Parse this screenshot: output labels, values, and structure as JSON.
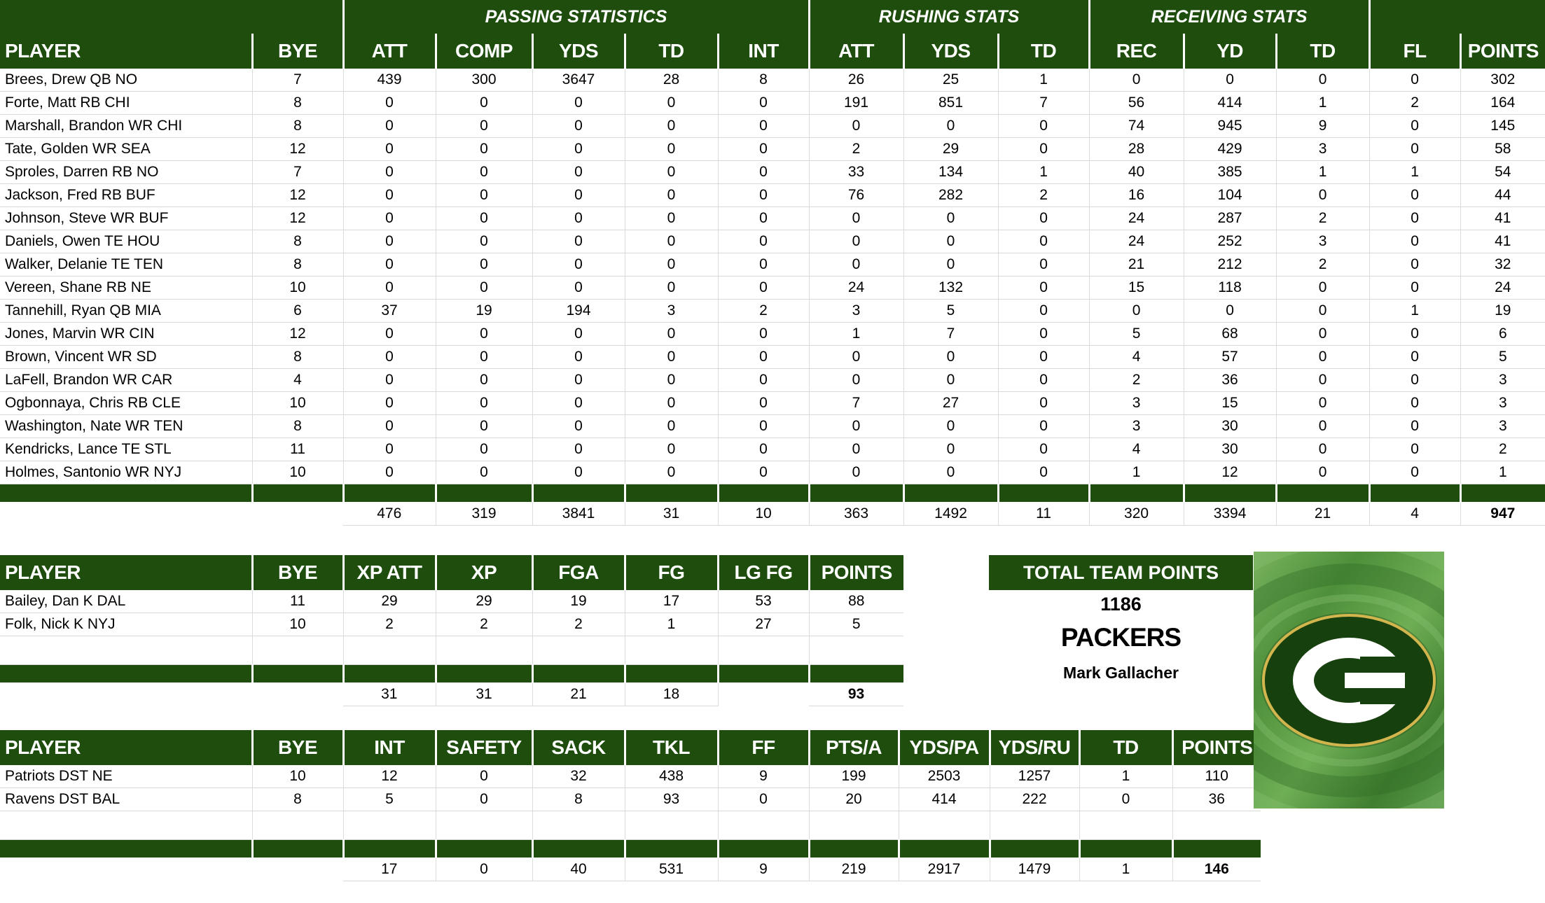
{
  "colors": {
    "header_green": "#1e4d0e",
    "row_border": "#d9d9d9",
    "logo_dark_green": "#17400f",
    "logo_gold": "#d3b54e",
    "logo_background_green": "#5a9e48"
  },
  "main_table": {
    "group_headers": {
      "blank_left": "",
      "passing": "PASSING STATISTICS",
      "rushing": "RUSHING STATS",
      "receiving": "RECEIVING STATS",
      "blank_right": ""
    },
    "columns": [
      "PLAYER",
      "BYE",
      "ATT",
      "COMP",
      "YDS",
      "TD",
      "INT",
      "ATT",
      "YDS",
      "TD",
      "REC",
      "YD",
      "TD",
      "FL",
      "POINTS"
    ],
    "rows": [
      [
        "Brees, Drew QB NO",
        "7",
        "439",
        "300",
        "3647",
        "28",
        "8",
        "26",
        "25",
        "1",
        "0",
        "0",
        "0",
        "0",
        "302"
      ],
      [
        "Forte, Matt RB CHI",
        "8",
        "0",
        "0",
        "0",
        "0",
        "0",
        "191",
        "851",
        "7",
        "56",
        "414",
        "1",
        "2",
        "164"
      ],
      [
        "Marshall, Brandon WR CHI",
        "8",
        "0",
        "0",
        "0",
        "0",
        "0",
        "0",
        "0",
        "0",
        "74",
        "945",
        "9",
        "0",
        "145"
      ],
      [
        "Tate, Golden WR SEA",
        "12",
        "0",
        "0",
        "0",
        "0",
        "0",
        "2",
        "29",
        "0",
        "28",
        "429",
        "3",
        "0",
        "58"
      ],
      [
        "Sproles, Darren RB NO",
        "7",
        "0",
        "0",
        "0",
        "0",
        "0",
        "33",
        "134",
        "1",
        "40",
        "385",
        "1",
        "1",
        "54"
      ],
      [
        "Jackson, Fred RB BUF",
        "12",
        "0",
        "0",
        "0",
        "0",
        "0",
        "76",
        "282",
        "2",
        "16",
        "104",
        "0",
        "0",
        "44"
      ],
      [
        "Johnson, Steve WR BUF",
        "12",
        "0",
        "0",
        "0",
        "0",
        "0",
        "0",
        "0",
        "0",
        "24",
        "287",
        "2",
        "0",
        "41"
      ],
      [
        "Daniels, Owen TE HOU",
        "8",
        "0",
        "0",
        "0",
        "0",
        "0",
        "0",
        "0",
        "0",
        "24",
        "252",
        "3",
        "0",
        "41"
      ],
      [
        "Walker, Delanie TE TEN",
        "8",
        "0",
        "0",
        "0",
        "0",
        "0",
        "0",
        "0",
        "0",
        "21",
        "212",
        "2",
        "0",
        "32"
      ],
      [
        "Vereen, Shane RB NE",
        "10",
        "0",
        "0",
        "0",
        "0",
        "0",
        "24",
        "132",
        "0",
        "15",
        "118",
        "0",
        "0",
        "24"
      ],
      [
        "Tannehill, Ryan QB MIA",
        "6",
        "37",
        "19",
        "194",
        "3",
        "2",
        "3",
        "5",
        "0",
        "0",
        "0",
        "0",
        "1",
        "19"
      ],
      [
        "Jones, Marvin WR CIN",
        "12",
        "0",
        "0",
        "0",
        "0",
        "0",
        "1",
        "7",
        "0",
        "5",
        "68",
        "0",
        "0",
        "6"
      ],
      [
        "Brown, Vincent WR SD",
        "8",
        "0",
        "0",
        "0",
        "0",
        "0",
        "0",
        "0",
        "0",
        "4",
        "57",
        "0",
        "0",
        "5"
      ],
      [
        "LaFell, Brandon WR CAR",
        "4",
        "0",
        "0",
        "0",
        "0",
        "0",
        "0",
        "0",
        "0",
        "2",
        "36",
        "0",
        "0",
        "3"
      ],
      [
        "Ogbonnaya, Chris RB CLE",
        "10",
        "0",
        "0",
        "0",
        "0",
        "0",
        "7",
        "27",
        "0",
        "3",
        "15",
        "0",
        "0",
        "3"
      ],
      [
        "Washington, Nate WR TEN",
        "8",
        "0",
        "0",
        "0",
        "0",
        "0",
        "0",
        "0",
        "0",
        "3",
        "30",
        "0",
        "0",
        "3"
      ],
      [
        "Kendricks, Lance TE STL",
        "11",
        "0",
        "0",
        "0",
        "0",
        "0",
        "0",
        "0",
        "0",
        "4",
        "30",
        "0",
        "0",
        "2"
      ],
      [
        "Holmes, Santonio WR NYJ",
        "10",
        "0",
        "0",
        "0",
        "0",
        "0",
        "0",
        "0",
        "0",
        "1",
        "12",
        "0",
        "0",
        "1"
      ]
    ],
    "totals": [
      "",
      "",
      "476",
      "319",
      "3841",
      "31",
      "10",
      "363",
      "1492",
      "11",
      "320",
      "3394",
      "21",
      "4",
      "947"
    ]
  },
  "kicker_table": {
    "columns": [
      "PLAYER",
      "BYE",
      "XP ATT",
      "XP",
      "FGA",
      "FG",
      "LG FG",
      "POINTS"
    ],
    "rows": [
      [
        "Bailey, Dan K DAL",
        "11",
        "29",
        "29",
        "19",
        "17",
        "53",
        "88"
      ],
      [
        "Folk, Nick K NYJ",
        "10",
        "2",
        "2",
        "2",
        "1",
        "27",
        "5"
      ]
    ],
    "totals": [
      "",
      "",
      "31",
      "31",
      "21",
      "18",
      "",
      "93"
    ]
  },
  "dst_table": {
    "columns": [
      "PLAYER",
      "BYE",
      "INT",
      "SAFETY",
      "SACK",
      "TKL",
      "FF",
      "PTS/A",
      "YDS/PA",
      "YDS/RU",
      "TD",
      "POINTS"
    ],
    "rows": [
      [
        "Patriots DST NE",
        "10",
        "12",
        "0",
        "32",
        "438",
        "9",
        "199",
        "2503",
        "1257",
        "1",
        "110"
      ],
      [
        "Ravens DST BAL",
        "8",
        "5",
        "0",
        "8",
        "93",
        "0",
        "20",
        "414",
        "222",
        "0",
        "36"
      ]
    ],
    "totals": [
      "",
      "",
      "17",
      "0",
      "40",
      "531",
      "9",
      "219",
      "2917",
      "1479",
      "1",
      "146"
    ]
  },
  "team_summary": {
    "header": "TOTAL TEAM POINTS",
    "total_points": "1186",
    "team_name": "PACKERS",
    "owner": "Mark Gallacher"
  },
  "logo": {
    "team": "Green Bay Packers G logo"
  }
}
